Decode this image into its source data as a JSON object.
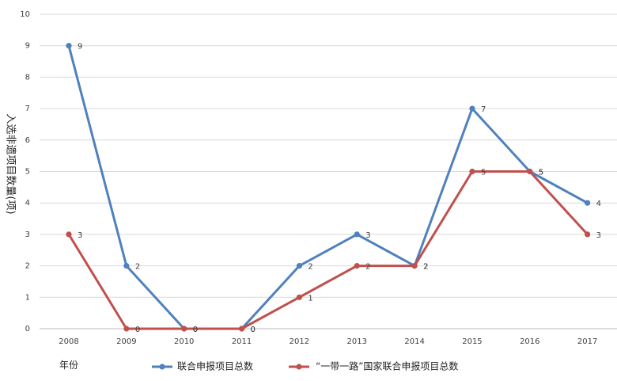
{
  "chart_data": {
    "type": "line",
    "title": "",
    "xlabel": "年份",
    "ylabel": "入选非遗项目数量(项)",
    "categories": [
      "2008",
      "2009",
      "2010",
      "2011",
      "2012",
      "2013",
      "2014",
      "2015",
      "2016",
      "2017"
    ],
    "ylim": [
      0,
      10
    ],
    "yticks": [
      0,
      1,
      2,
      3,
      4,
      5,
      6,
      7,
      8,
      9,
      10
    ],
    "grid": true,
    "legend_position": "bottom",
    "series": [
      {
        "name": "联合申报项目总数",
        "color": "#4f81bd",
        "values": [
          9,
          2,
          0,
          0,
          2,
          3,
          2,
          7,
          5,
          4
        ]
      },
      {
        "name": "“一带一路”国家联合申报项目总数",
        "color": "#c0504d",
        "values": [
          3,
          0,
          0,
          0,
          1,
          2,
          2,
          5,
          5,
          3
        ]
      }
    ]
  }
}
